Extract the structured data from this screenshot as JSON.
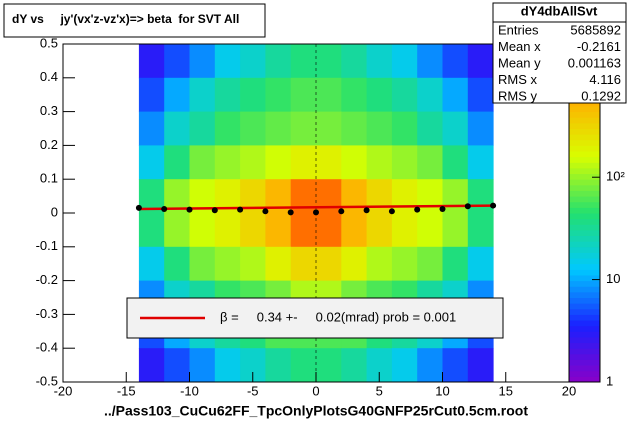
{
  "chart_data": {
    "type": "heatmap",
    "title": "dY vs     jy'(vx'z-vz'x)=> beta  for SVT All",
    "x_label": "../Pass103_CuCu62FF_TpcOnlyPlotsG40GNFP25rCut0.5cm.root",
    "xlim": [
      -20,
      20
    ],
    "ylim": [
      -0.5,
      0.5
    ],
    "xticks": [
      -20,
      -15,
      -10,
      -5,
      0,
      5,
      10,
      15,
      20
    ],
    "yticks": [
      -0.5,
      -0.4,
      -0.3,
      -0.2,
      -0.1,
      0,
      0.1,
      0.2,
      0.3,
      0.4,
      0.5
    ],
    "xbins": [
      -14,
      -12,
      -10,
      -8,
      -6,
      -4,
      -2,
      0,
      2,
      4,
      6,
      8,
      10,
      12,
      14
    ],
    "ybins": [
      0.5,
      0.4,
      0.3,
      0.2,
      0.1,
      0,
      -0.1,
      -0.2,
      -0.3,
      -0.4,
      -0.5
    ],
    "z": [
      [
        3,
        5,
        8,
        15,
        20,
        30,
        40,
        40,
        30,
        20,
        15,
        8,
        5,
        3
      ],
      [
        5,
        10,
        20,
        30,
        40,
        50,
        60,
        60,
        50,
        40,
        30,
        20,
        10,
        5
      ],
      [
        8,
        20,
        30,
        50,
        60,
        70,
        80,
        80,
        70,
        60,
        50,
        30,
        20,
        8
      ],
      [
        15,
        40,
        80,
        100,
        120,
        150,
        200,
        200,
        150,
        120,
        100,
        80,
        40,
        15
      ],
      [
        40,
        100,
        150,
        200,
        300,
        500,
        1000,
        1000,
        500,
        300,
        200,
        150,
        100,
        40
      ],
      [
        40,
        100,
        150,
        200,
        300,
        500,
        1000,
        1000,
        500,
        300,
        200,
        150,
        100,
        40
      ],
      [
        15,
        40,
        80,
        100,
        120,
        200,
        300,
        300,
        200,
        120,
        100,
        80,
        40,
        15
      ],
      [
        8,
        20,
        30,
        50,
        60,
        80,
        120,
        120,
        80,
        60,
        50,
        30,
        20,
        8
      ],
      [
        5,
        10,
        20,
        30,
        40,
        60,
        60,
        60,
        60,
        40,
        30,
        20,
        10,
        5
      ],
      [
        3,
        5,
        8,
        15,
        20,
        30,
        40,
        40,
        30,
        20,
        15,
        8,
        5,
        3
      ]
    ],
    "zlim": [
      1,
      2000
    ],
    "zticks": [
      1,
      10,
      {
        "value": 100,
        "label": "10²"
      }
    ],
    "log_z": true,
    "palette": [
      "#8a00c8",
      "#1a20ff",
      "#00c8ff",
      "#22e070",
      "#d8ff00",
      "#ffb000",
      "#ff2000"
    ],
    "profile": {
      "color": "#000000",
      "x": [
        -14,
        -12,
        -10,
        -8,
        -6,
        -4,
        -2,
        0,
        2,
        4,
        6,
        8,
        10,
        12,
        14
      ],
      "y": [
        0.015,
        0.012,
        0.01,
        0.008,
        0.01,
        0.005,
        0.002,
        0.002,
        0.005,
        0.008,
        0.005,
        0.01,
        0.012,
        0.02,
        0.022
      ]
    },
    "fit": {
      "name": "β =     0.34 +-     0.02(mrad) prob = 0.001",
      "color": "#e00000",
      "x": [
        -14,
        14
      ],
      "y": [
        0.012,
        0.022
      ]
    },
    "stats": {
      "title": "dY4dbAllSvt",
      "labels": [
        "Entries",
        "Mean x",
        "Mean y",
        "RMS x",
        "RMS y"
      ],
      "values": [
        5685892,
        -0.2161,
        0.001163,
        4.116,
        0.1292
      ]
    }
  }
}
